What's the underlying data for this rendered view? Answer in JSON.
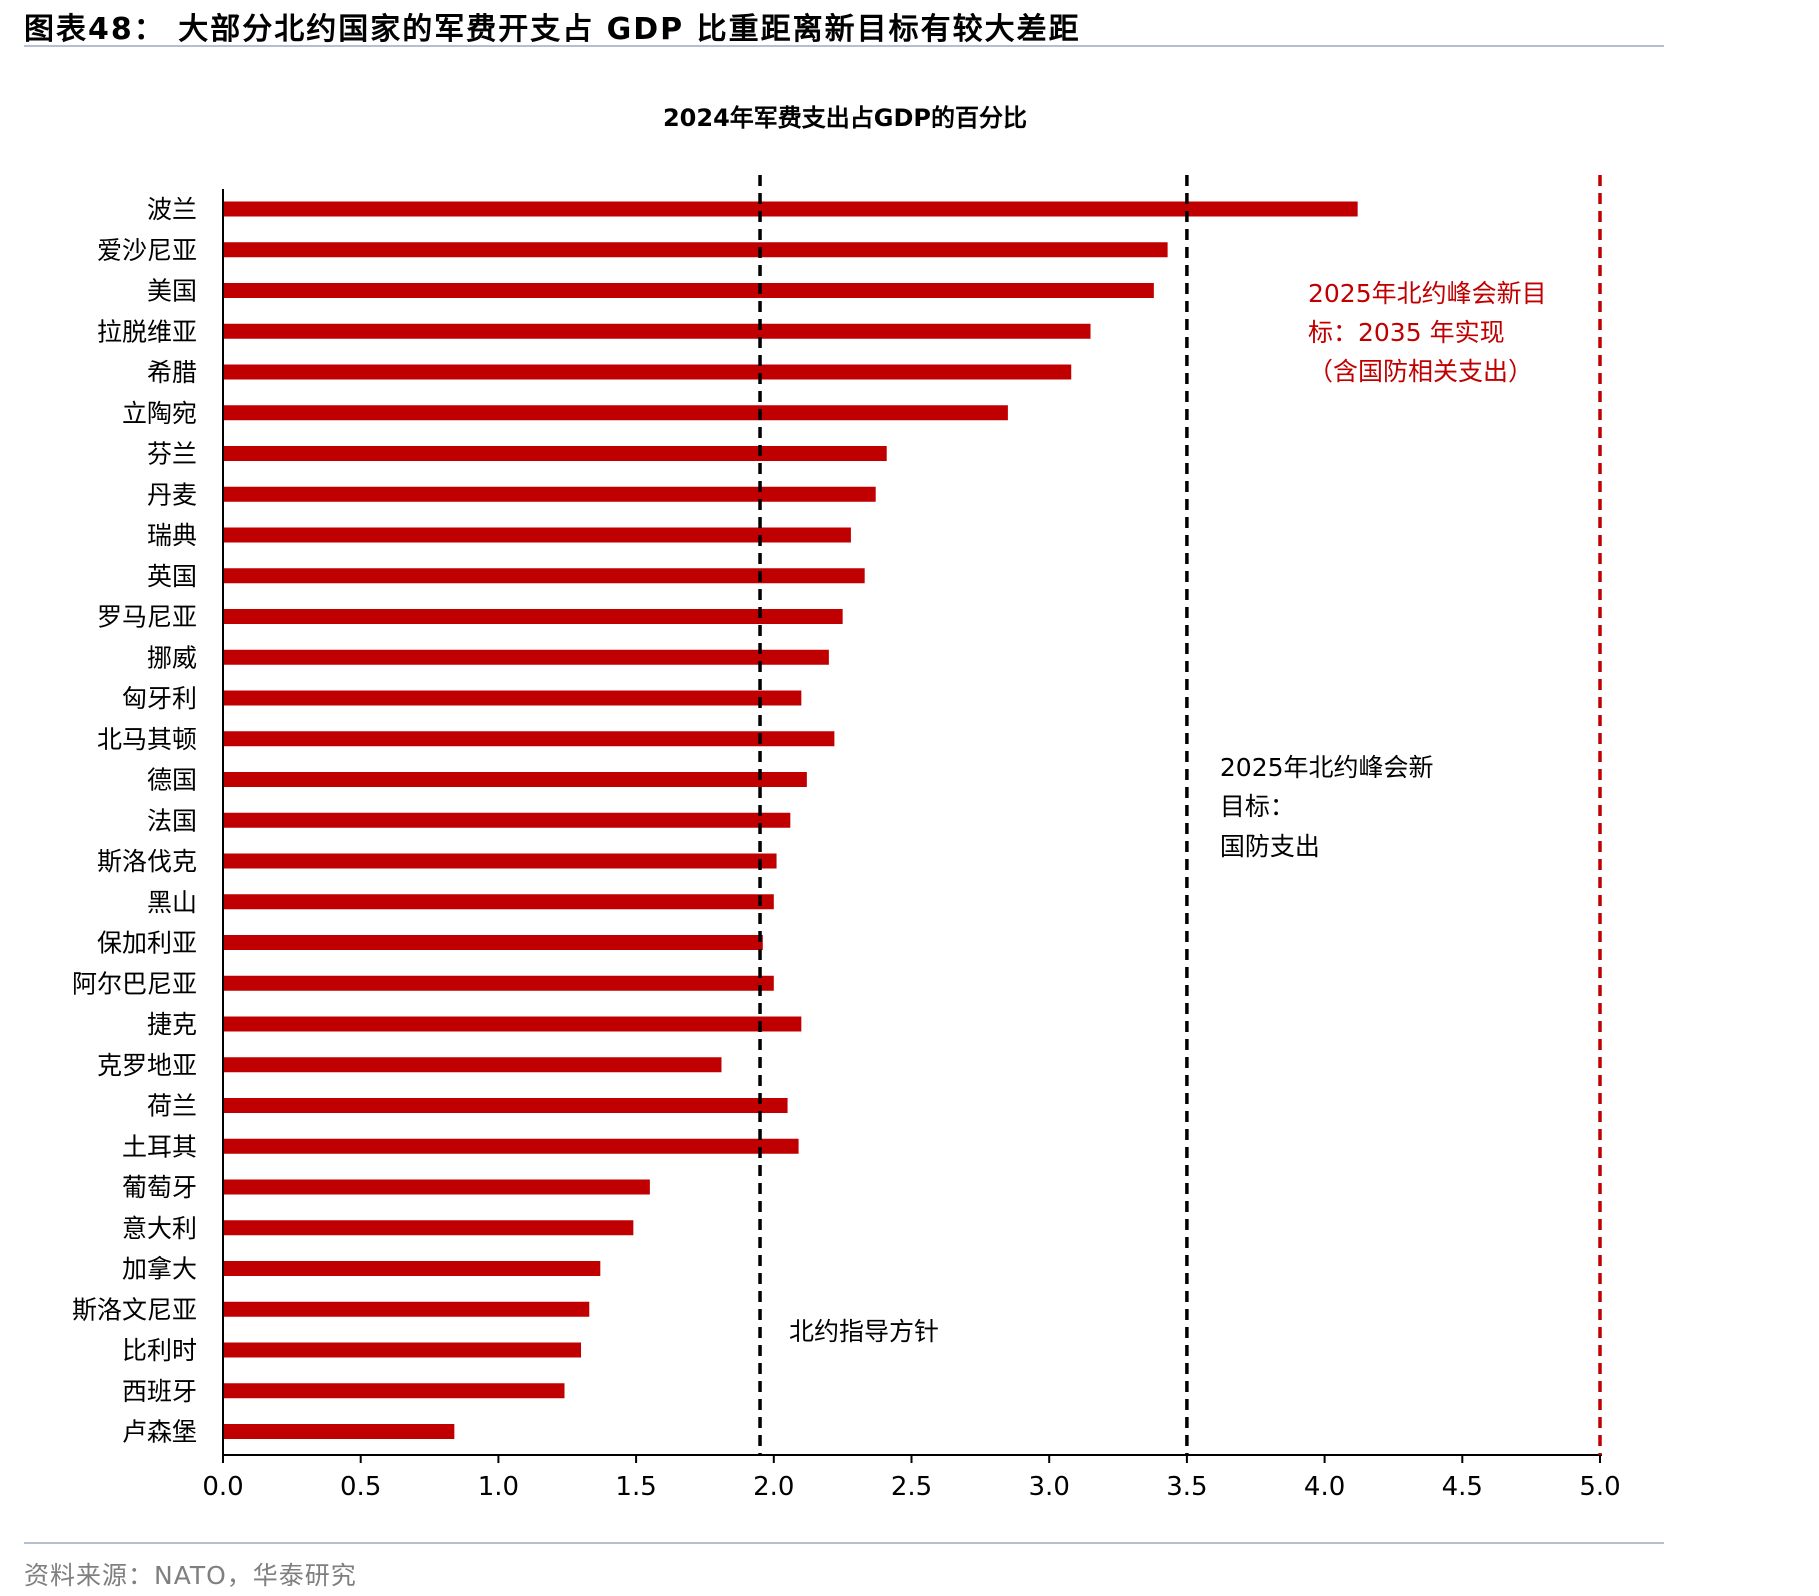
{
  "figure": {
    "title": "图表48： 大部分北约国家的军费开支占 GDP 比重距离新目标有较大差距",
    "source": "资料来源：NATO，华泰研究"
  },
  "colors": {
    "bar": "#c00000",
    "guideline": "#000000",
    "new_target": "#c00000",
    "rule": "#b4bfcf",
    "source_text": "#7f7f7f"
  },
  "chart_data": {
    "type": "bar",
    "orientation": "horizontal",
    "title": "2024年军费支出占GDP的百分比",
    "xlabel": "",
    "ylabel": "",
    "xlim": [
      0,
      5
    ],
    "x_ticks": [
      "0.0",
      "0.5",
      "1.0",
      "1.5",
      "2.0",
      "2.5",
      "3.0",
      "3.5",
      "4.0",
      "4.5",
      "5.0"
    ],
    "grid": false,
    "legend": "none",
    "categories": [
      "波兰",
      "爱沙尼亚",
      "美国",
      "拉脱维亚",
      "希腊",
      "立陶宛",
      "芬兰",
      "丹麦",
      "瑞典",
      "英国",
      "罗马尼亚",
      "挪威",
      "匈牙利",
      "北马其顿",
      "德国",
      "法国",
      "斯洛伐克",
      "黑山",
      "保加利亚",
      "阿尔巴尼亚",
      "捷克",
      "克罗地亚",
      "荷兰",
      "土耳其",
      "葡萄牙",
      "意大利",
      "加拿大",
      "斯洛文尼亚",
      "比利时",
      "西班牙",
      "卢森堡"
    ],
    "values": [
      4.12,
      3.43,
      3.38,
      3.15,
      3.08,
      2.85,
      2.41,
      2.37,
      2.28,
      2.33,
      2.25,
      2.2,
      2.1,
      2.22,
      2.12,
      2.06,
      2.01,
      2.0,
      1.96,
      2.0,
      2.1,
      1.81,
      2.05,
      2.09,
      1.55,
      1.49,
      1.37,
      1.33,
      1.3,
      1.24,
      0.84
    ],
    "reference_lines": [
      {
        "x": 1.95,
        "color": "#000000",
        "style": "dashed",
        "label": "北约指导方针"
      },
      {
        "x": 3.5,
        "color": "#000000",
        "style": "dashed",
        "label_lines": [
          "2025年北约峰会新",
          "目标：",
          "国防支出"
        ]
      },
      {
        "x": 5.0,
        "color": "#c00000",
        "style": "dashed",
        "label_lines": [
          "2025年北约峰会新目",
          "标：2035 年实现",
          "（含国防相关支出）"
        ]
      }
    ]
  }
}
